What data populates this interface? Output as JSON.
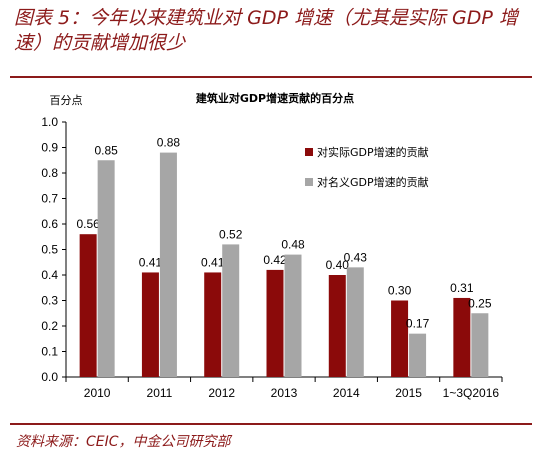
{
  "figure": {
    "title": "图表 5：今年以来建筑业对 GDP 增速（尤其是实际 GDP 增速）的贡献增加很少",
    "source": "资料来源：CEIC，中金公司研究部"
  },
  "chart_data": {
    "type": "bar",
    "title": "建筑业对GDP增速贡献的百分点",
    "ylabel": "百分点",
    "xlabel": "",
    "categories": [
      "2010",
      "2011",
      "2012",
      "2013",
      "2014",
      "2015",
      "1~3Q2016"
    ],
    "series": [
      {
        "name": "对实际GDP增速的贡献",
        "color": "#8b0a0a",
        "values": [
          0.56,
          0.41,
          0.41,
          0.42,
          0.4,
          0.3,
          0.31
        ]
      },
      {
        "name": "对名义GDP增速的贡献",
        "color": "#a6a6a6",
        "values": [
          0.85,
          0.88,
          0.52,
          0.48,
          0.43,
          0.17,
          0.25
        ]
      }
    ],
    "ylim": [
      0,
      1.0
    ],
    "yticks": [
      "0.0",
      "0.1",
      "0.2",
      "0.3",
      "0.4",
      "0.5",
      "0.6",
      "0.7",
      "0.8",
      "0.9",
      "1.0"
    ],
    "legend_position": "right",
    "grid": false
  }
}
